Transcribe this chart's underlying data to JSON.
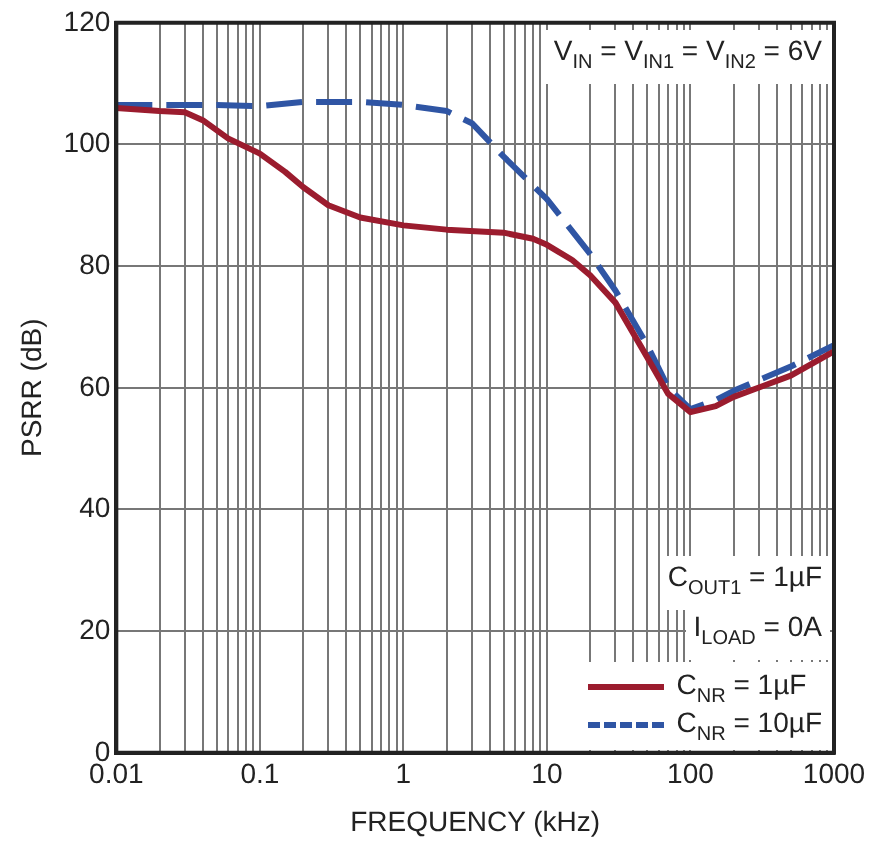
{
  "chart_data": {
    "type": "line",
    "xlabel": "FREQUENCY (kHz)",
    "ylabel": "PSRR (dB)",
    "xlim": [
      0.01,
      1000
    ],
    "ylim": [
      0,
      120
    ],
    "xticks": [
      0.01,
      {
        "value": 0.02,
        "label": null
      },
      {
        "value": 0.03,
        "label": null
      },
      {
        "value": 0.04,
        "label": null
      },
      {
        "value": 0.05,
        "label": null
      },
      {
        "value": 0.06,
        "label": null
      },
      {
        "value": 0.07,
        "label": null
      },
      {
        "value": 0.08,
        "label": null
      },
      {
        "value": 0.09,
        "label": null
      },
      0.1,
      {
        "value": 0.2,
        "label": null
      },
      {
        "value": 0.3,
        "label": null
      },
      {
        "value": 0.4,
        "label": null
      },
      {
        "value": 0.5,
        "label": null
      },
      {
        "value": 0.6,
        "label": null
      },
      {
        "value": 0.7,
        "label": null
      },
      {
        "value": 0.8,
        "label": null
      },
      {
        "value": 0.9,
        "label": null
      },
      1,
      {
        "value": 2,
        "label": null
      },
      {
        "value": 3,
        "label": null
      },
      {
        "value": 4,
        "label": null
      },
      {
        "value": 5,
        "label": null
      },
      {
        "value": 6,
        "label": null
      },
      {
        "value": 7,
        "label": null
      },
      {
        "value": 8,
        "label": null
      },
      {
        "value": 9,
        "label": null
      },
      10,
      {
        "value": 20,
        "label": null
      },
      {
        "value": 30,
        "label": null
      },
      {
        "value": 40,
        "label": null
      },
      {
        "value": 50,
        "label": null
      },
      {
        "value": 60,
        "label": null
      },
      {
        "value": 70,
        "label": null
      },
      {
        "value": 80,
        "label": null
      },
      {
        "value": 90,
        "label": null
      },
      100,
      {
        "value": 200,
        "label": null
      },
      {
        "value": 300,
        "label": null
      },
      {
        "value": 400,
        "label": null
      },
      {
        "value": 500,
        "label": null
      },
      {
        "value": 600,
        "label": null
      },
      {
        "value": 700,
        "label": null
      },
      {
        "value": 800,
        "label": null
      },
      {
        "value": 900,
        "label": null
      },
      1000
    ],
    "yticks": [
      0,
      20,
      40,
      60,
      80,
      100,
      120
    ],
    "log": "x",
    "grid": true,
    "legend": "bottom right",
    "marker": "none",
    "annotations": [
      "V$_{IN}$ = V$_{IN1}$ = V$_{IN2}$ = 6V",
      "C$_{OUT1}$ = 1µF",
      "I$_{LOAD}$ = 0A"
    ],
    "series": [
      {
        "name": "C$_{NR}$ = 1µF",
        "color": "#9b1c2e",
        "line_style": "solid",
        "x": [
          0.01,
          0.02,
          0.03,
          0.04,
          0.06,
          0.1,
          0.15,
          0.2,
          0.3,
          0.5,
          1,
          2,
          5,
          8,
          10,
          15,
          20,
          30,
          50,
          70,
          100,
          150,
          200,
          500,
          1000
        ],
        "values": [
          106,
          105.5,
          105.3,
          104,
          101,
          98.5,
          95.5,
          93,
          90,
          88,
          86.7,
          86,
          85.5,
          84.5,
          83.5,
          81,
          78.5,
          74,
          65,
          59,
          56,
          57,
          58.5,
          62,
          66
        ]
      },
      {
        "name": "C$_{NR}$ = 10µF",
        "color": "#2f55a4",
        "line_style": "dashed",
        "x": [
          0.01,
          0.05,
          0.1,
          0.2,
          0.5,
          1,
          2,
          3,
          5,
          10,
          20,
          30,
          50,
          70,
          100,
          150,
          200,
          500,
          1000
        ],
        "values": [
          106.5,
          106.5,
          106.3,
          107,
          107,
          106.5,
          105.5,
          103.5,
          98,
          91,
          82,
          76,
          67,
          60,
          56.5,
          58,
          59.5,
          63.5,
          67
        ]
      }
    ]
  }
}
